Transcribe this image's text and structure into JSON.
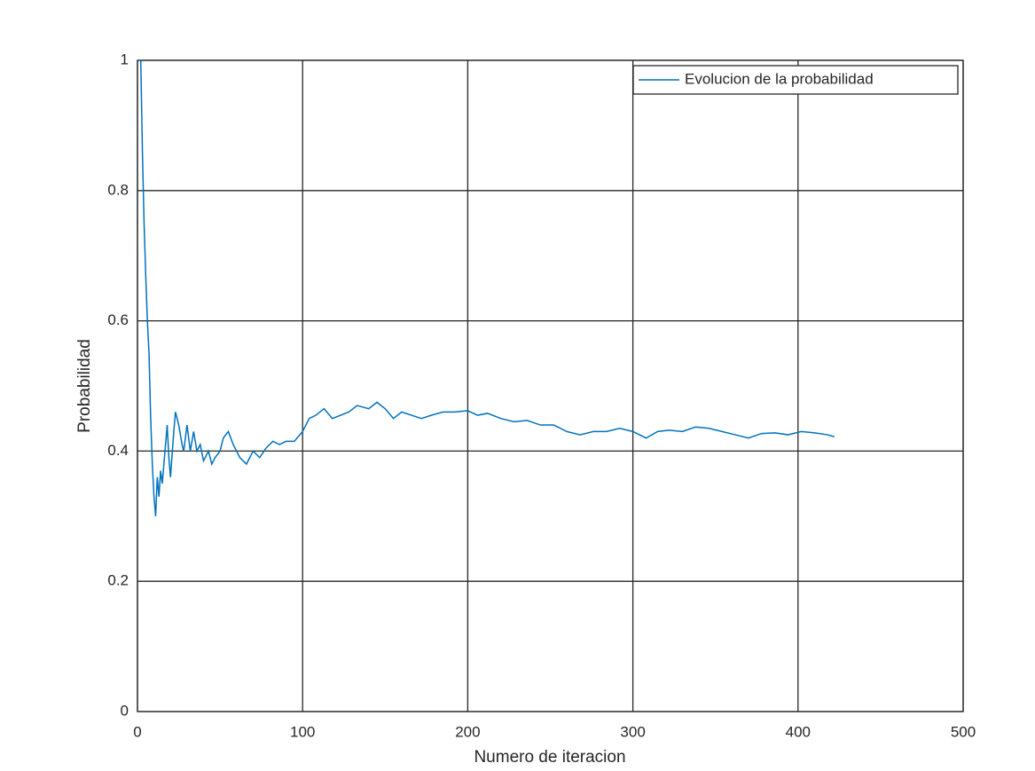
{
  "chart_data": {
    "type": "line",
    "x_label": "Numero de iteracion",
    "y_label": "Probabilidad",
    "x": [
      1,
      2,
      3,
      4,
      5,
      6,
      7,
      8,
      9,
      10,
      11,
      12,
      13,
      14,
      15,
      17,
      18,
      19,
      20,
      22,
      23,
      25,
      27,
      28,
      30,
      32,
      34,
      36,
      38,
      40,
      43,
      45,
      47,
      50,
      52,
      55,
      58,
      62,
      66,
      70,
      74,
      78,
      82,
      86,
      90,
      95,
      100,
      104,
      108,
      113,
      118,
      123,
      128,
      133,
      140,
      145,
      150,
      155,
      160,
      166,
      172,
      178,
      185,
      192,
      200,
      206,
      212,
      220,
      228,
      236,
      244,
      252,
      260,
      268,
      276,
      284,
      292,
      300,
      308,
      315,
      322,
      330,
      338,
      346,
      354,
      362,
      370,
      378,
      386,
      394,
      402,
      410,
      418,
      422
    ],
    "series": [
      {
        "name": "Evolucion de la probabilidad",
        "color": "#0072bd",
        "values": [
          1,
          1,
          0.86,
          0.75,
          0.67,
          0.6,
          0.55,
          0.45,
          0.38,
          0.33,
          0.3,
          0.36,
          0.33,
          0.37,
          0.35,
          0.41,
          0.44,
          0.39,
          0.36,
          0.43,
          0.46,
          0.44,
          0.41,
          0.4,
          0.44,
          0.4,
          0.43,
          0.4,
          0.41,
          0.385,
          0.4,
          0.38,
          0.39,
          0.4,
          0.42,
          0.43,
          0.41,
          0.39,
          0.38,
          0.4,
          0.39,
          0.405,
          0.415,
          0.41,
          0.415,
          0.415,
          0.43,
          0.45,
          0.455,
          0.465,
          0.45,
          0.455,
          0.46,
          0.47,
          0.465,
          0.475,
          0.465,
          0.45,
          0.46,
          0.455,
          0.45,
          0.455,
          0.46,
          0.46,
          0.462,
          0.455,
          0.458,
          0.45,
          0.445,
          0.447,
          0.44,
          0.44,
          0.43,
          0.425,
          0.43,
          0.43,
          0.435,
          0.43,
          0.42,
          0.43,
          0.432,
          0.43,
          0.437,
          0.435,
          0.43,
          0.425,
          0.42,
          0.427,
          0.428,
          0.425,
          0.43,
          0.428,
          0.425,
          0.422
        ]
      }
    ],
    "xlim": [
      0,
      500
    ],
    "xticks": [
      0,
      100,
      200,
      300,
      400,
      500
    ],
    "ylim": [
      0,
      1
    ],
    "yticks": [
      0,
      0.2,
      0.4,
      0.6,
      0.8,
      1
    ],
    "grid": true,
    "legend": "northeast"
  }
}
